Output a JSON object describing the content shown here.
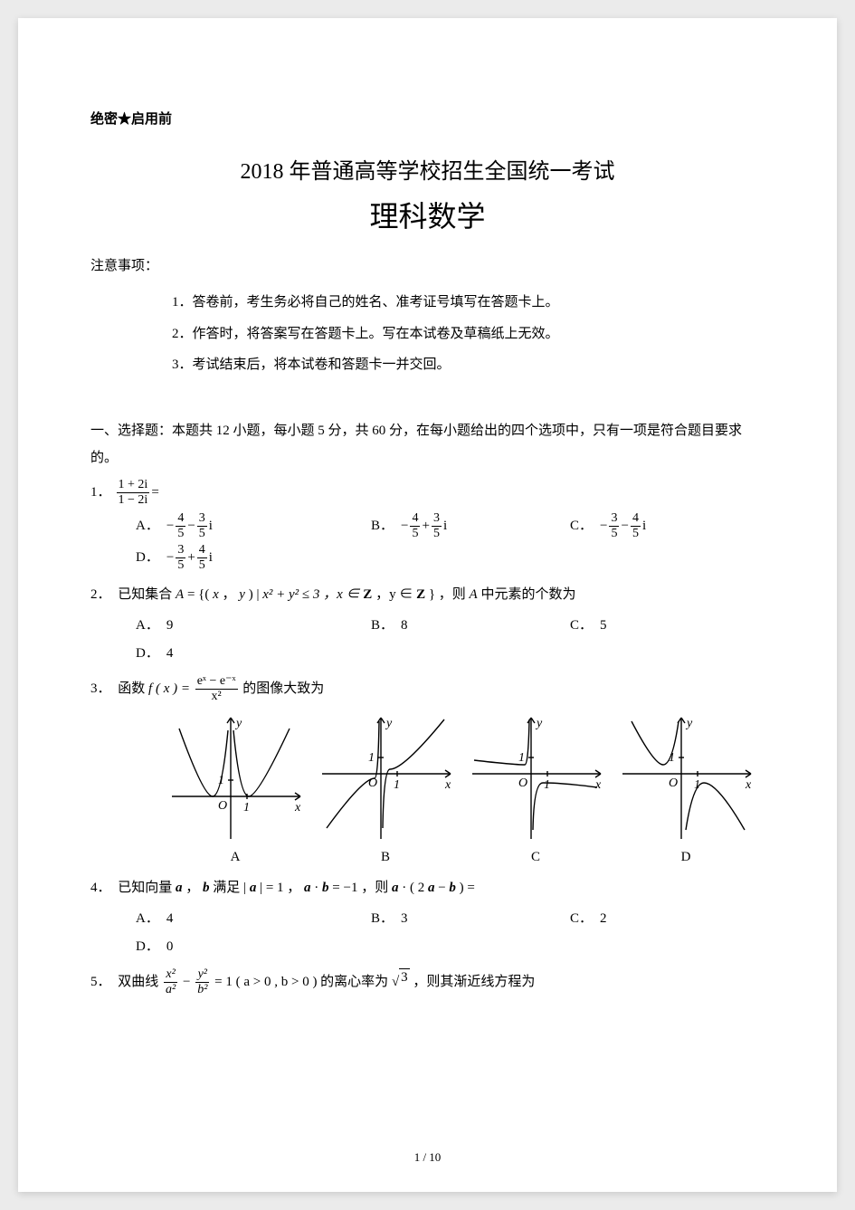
{
  "confidential": "绝密★启用前",
  "exam_title": "2018 年普通高等学校招生全国统一考试",
  "subject_title": "理科数学",
  "notice_heading": "注意事项：",
  "notices": [
    "1．答卷前，考生务必将自己的姓名、准考证号填写在答题卡上。",
    "2．作答时，将答案写在答题卡上。写在本试卷及草稿纸上无效。",
    "3．考试结束后，将本试卷和答题卡一并交回。"
  ],
  "section1": "一、选择题：本题共 12 小题，每小题 5 分，共 60 分，在每小题给出的四个选项中，只有一项是符合题目要求的。",
  "q1": {
    "num": "1．",
    "frac_top": "1 + 2i",
    "frac_bot": "1 − 2i",
    "eq": " =",
    "A_sign": "−",
    "A_n1": "4",
    "A_d1": "5",
    "A_mid": "−",
    "A_n2": "3",
    "A_d2": "5",
    "A_tail": "i",
    "B_sign": "−",
    "B_n1": "4",
    "B_d1": "5",
    "B_mid": "+",
    "B_n2": "3",
    "B_d2": "5",
    "B_tail": "i",
    "C_sign": "−",
    "C_n1": "3",
    "C_d1": "5",
    "C_mid": "−",
    "C_n2": "4",
    "C_d2": "5",
    "C_tail": "i",
    "D_sign": "−",
    "D_n1": "3",
    "D_d1": "5",
    "D_mid": "+",
    "D_n2": "4",
    "D_d2": "5",
    "D_tail": "i"
  },
  "q2": {
    "num": "2．",
    "pre": "已知集合 ",
    "set_def_A": "A",
    "def_text1": " = {( ",
    "x": "x",
    "comma": " ，",
    "y": "y",
    "bar": " ) | ",
    "cond": "x² + y² ≤ 3 ，x ∈ ",
    "Z": "Z",
    "cond2": " ，y ∈ ",
    "Z2": "Z",
    "close": " } ，则 ",
    "Aref": "A",
    "post": " 中元素的个数为",
    "A": "9",
    "B": "8",
    "C": "5",
    "D": "4"
  },
  "q3": {
    "num": "3．",
    "pre": "函数 ",
    "f": "f ( x ) = ",
    "frac_top": "eˣ − e⁻ˣ",
    "frac_bot": "x²",
    "post": " 的图像大致为",
    "labels": [
      "A",
      "B",
      "C",
      "D"
    ]
  },
  "q4": {
    "num": "4．",
    "text": "已知向量 ",
    "a": "a",
    "c1": " ， ",
    "b": "b",
    "c2": " 满足 | ",
    "a2": "a",
    "c3": " | = 1 ，",
    "a3": "a",
    "dot1": " · ",
    "b2": "b",
    "c4": " = −1 ，则 ",
    "a4": "a",
    "dot2": " · ( 2",
    "a5": "a",
    "minus": " − ",
    "b3": "b",
    "close": " ) =",
    "A": "4",
    "B": "3",
    "C": "2",
    "D": "0"
  },
  "q5": {
    "num": "5．",
    "pre": "双曲线 ",
    "t1": "x²",
    "d1": "a²",
    "minus": " − ",
    "t2": "y²",
    "d2": "b²",
    "eq": " = 1 ( a > 0 , b > 0 ) 的离心率为 ",
    "sqrt": "3",
    "post": " ，则其渐近线方程为"
  },
  "labels": {
    "A": "A．",
    "B": "B．",
    "C": "C．",
    "D": "D．"
  },
  "footer": "1 / 10",
  "chart": {
    "width": 160,
    "height": 150,
    "stroke": "#000000",
    "stroke_width": 1.4,
    "axis_arrow": 4,
    "y_label": "y",
    "x_label": "x",
    "O": "O",
    "one": "1",
    "label_font": "italic 14px Times New Roman"
  }
}
